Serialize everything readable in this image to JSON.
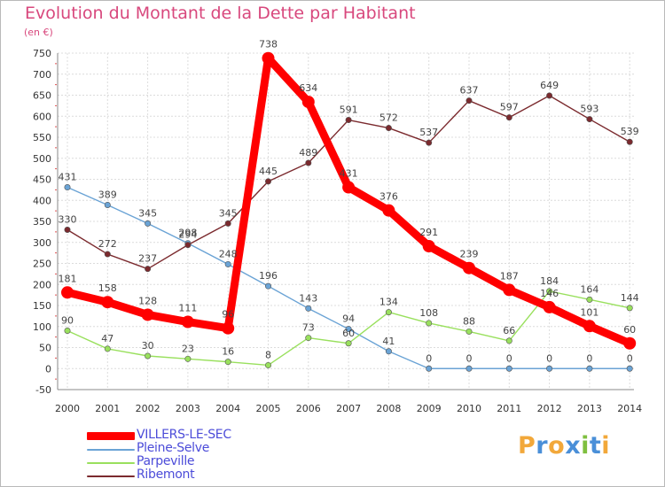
{
  "chart_data": {
    "type": "line",
    "title": "Evolution du Montant de la Dette par Habitant",
    "subtitle": "(en €)",
    "x": [
      "2000",
      "2001",
      "2002",
      "2003",
      "2004",
      "2005",
      "2006",
      "2007",
      "2008",
      "2009",
      "2010",
      "2011",
      "2012",
      "2013",
      "2014"
    ],
    "ylim": [
      -50,
      750
    ],
    "yticks": [
      -50,
      0,
      50,
      100,
      150,
      200,
      250,
      300,
      350,
      400,
      450,
      500,
      550,
      600,
      650,
      700,
      750
    ],
    "grid": true,
    "legend_position": "bottom-left",
    "series": [
      {
        "name": "VILLERS-LE-SEC",
        "color": "#ff0000",
        "values": [
          181,
          158,
          128,
          111,
          96,
          738,
          634,
          431,
          376,
          291,
          239,
          187,
          146,
          101,
          60
        ]
      },
      {
        "name": "Pleine-Selve",
        "color": "#6aa3d5",
        "values": [
          431,
          389,
          345,
          298,
          248,
          196,
          143,
          94,
          41,
          0,
          0,
          0,
          0,
          0,
          0
        ]
      },
      {
        "name": "Parpeville",
        "color": "#99e05d",
        "values": [
          90,
          47,
          30,
          23,
          16,
          8,
          73,
          60,
          134,
          108,
          88,
          66,
          184,
          164,
          144
        ]
      },
      {
        "name": "Ribemont",
        "color": "#7b2a2e",
        "values": [
          330,
          272,
          237,
          294,
          345,
          445,
          489,
          591,
          572,
          537,
          637,
          597,
          649,
          593,
          539
        ]
      }
    ]
  },
  "logo": {
    "text": "Proxiti",
    "letters": [
      {
        "ch": "P",
        "color": "#f2a83a"
      },
      {
        "ch": "r",
        "color": "#4a8fd8"
      },
      {
        "ch": "o",
        "color": "#f2a83a"
      },
      {
        "ch": "x",
        "color": "#4a8fd8"
      },
      {
        "ch": "i",
        "color": "#7fbf3f"
      },
      {
        "ch": "t",
        "color": "#4a8fd8"
      },
      {
        "ch": "i",
        "color": "#f2a83a"
      }
    ]
  }
}
